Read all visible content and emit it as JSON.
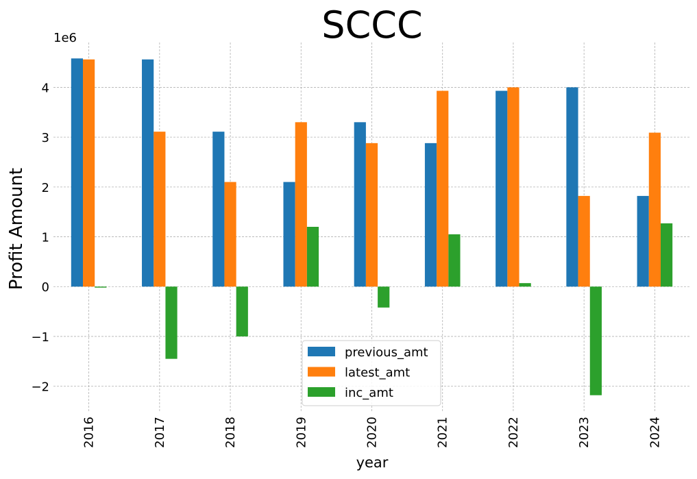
{
  "chart_data": {
    "type": "bar",
    "title": "SCCC",
    "xlabel": "year",
    "ylabel": "Profit Amount",
    "y_offset_label": "1e6",
    "categories": [
      "2016",
      "2017",
      "2018",
      "2019",
      "2020",
      "2021",
      "2022",
      "2023",
      "2024"
    ],
    "series": [
      {
        "name": "previous_amt",
        "color": "#1f77b4",
        "values": [
          4.58,
          4.56,
          3.11,
          2.1,
          3.3,
          2.88,
          3.93,
          4.0,
          1.82
        ]
      },
      {
        "name": "latest_amt",
        "color": "#ff7f0e",
        "values": [
          4.56,
          3.11,
          2.1,
          3.3,
          2.88,
          3.93,
          4.0,
          1.82,
          3.09
        ]
      },
      {
        "name": "inc_amt",
        "color": "#2ca02c",
        "values": [
          -0.02,
          -1.45,
          -1.0,
          1.2,
          -0.42,
          1.05,
          0.07,
          -2.18,
          1.27
        ]
      }
    ],
    "ylim": [
      -2.5,
      4.9
    ],
    "yticks": [
      -2,
      -1,
      0,
      1,
      2,
      3,
      4
    ],
    "ytick_labels": [
      "−2",
      "−1",
      "0",
      "1",
      "2",
      "3",
      "4"
    ],
    "grid": true,
    "legend_position": "bottom-center"
  }
}
